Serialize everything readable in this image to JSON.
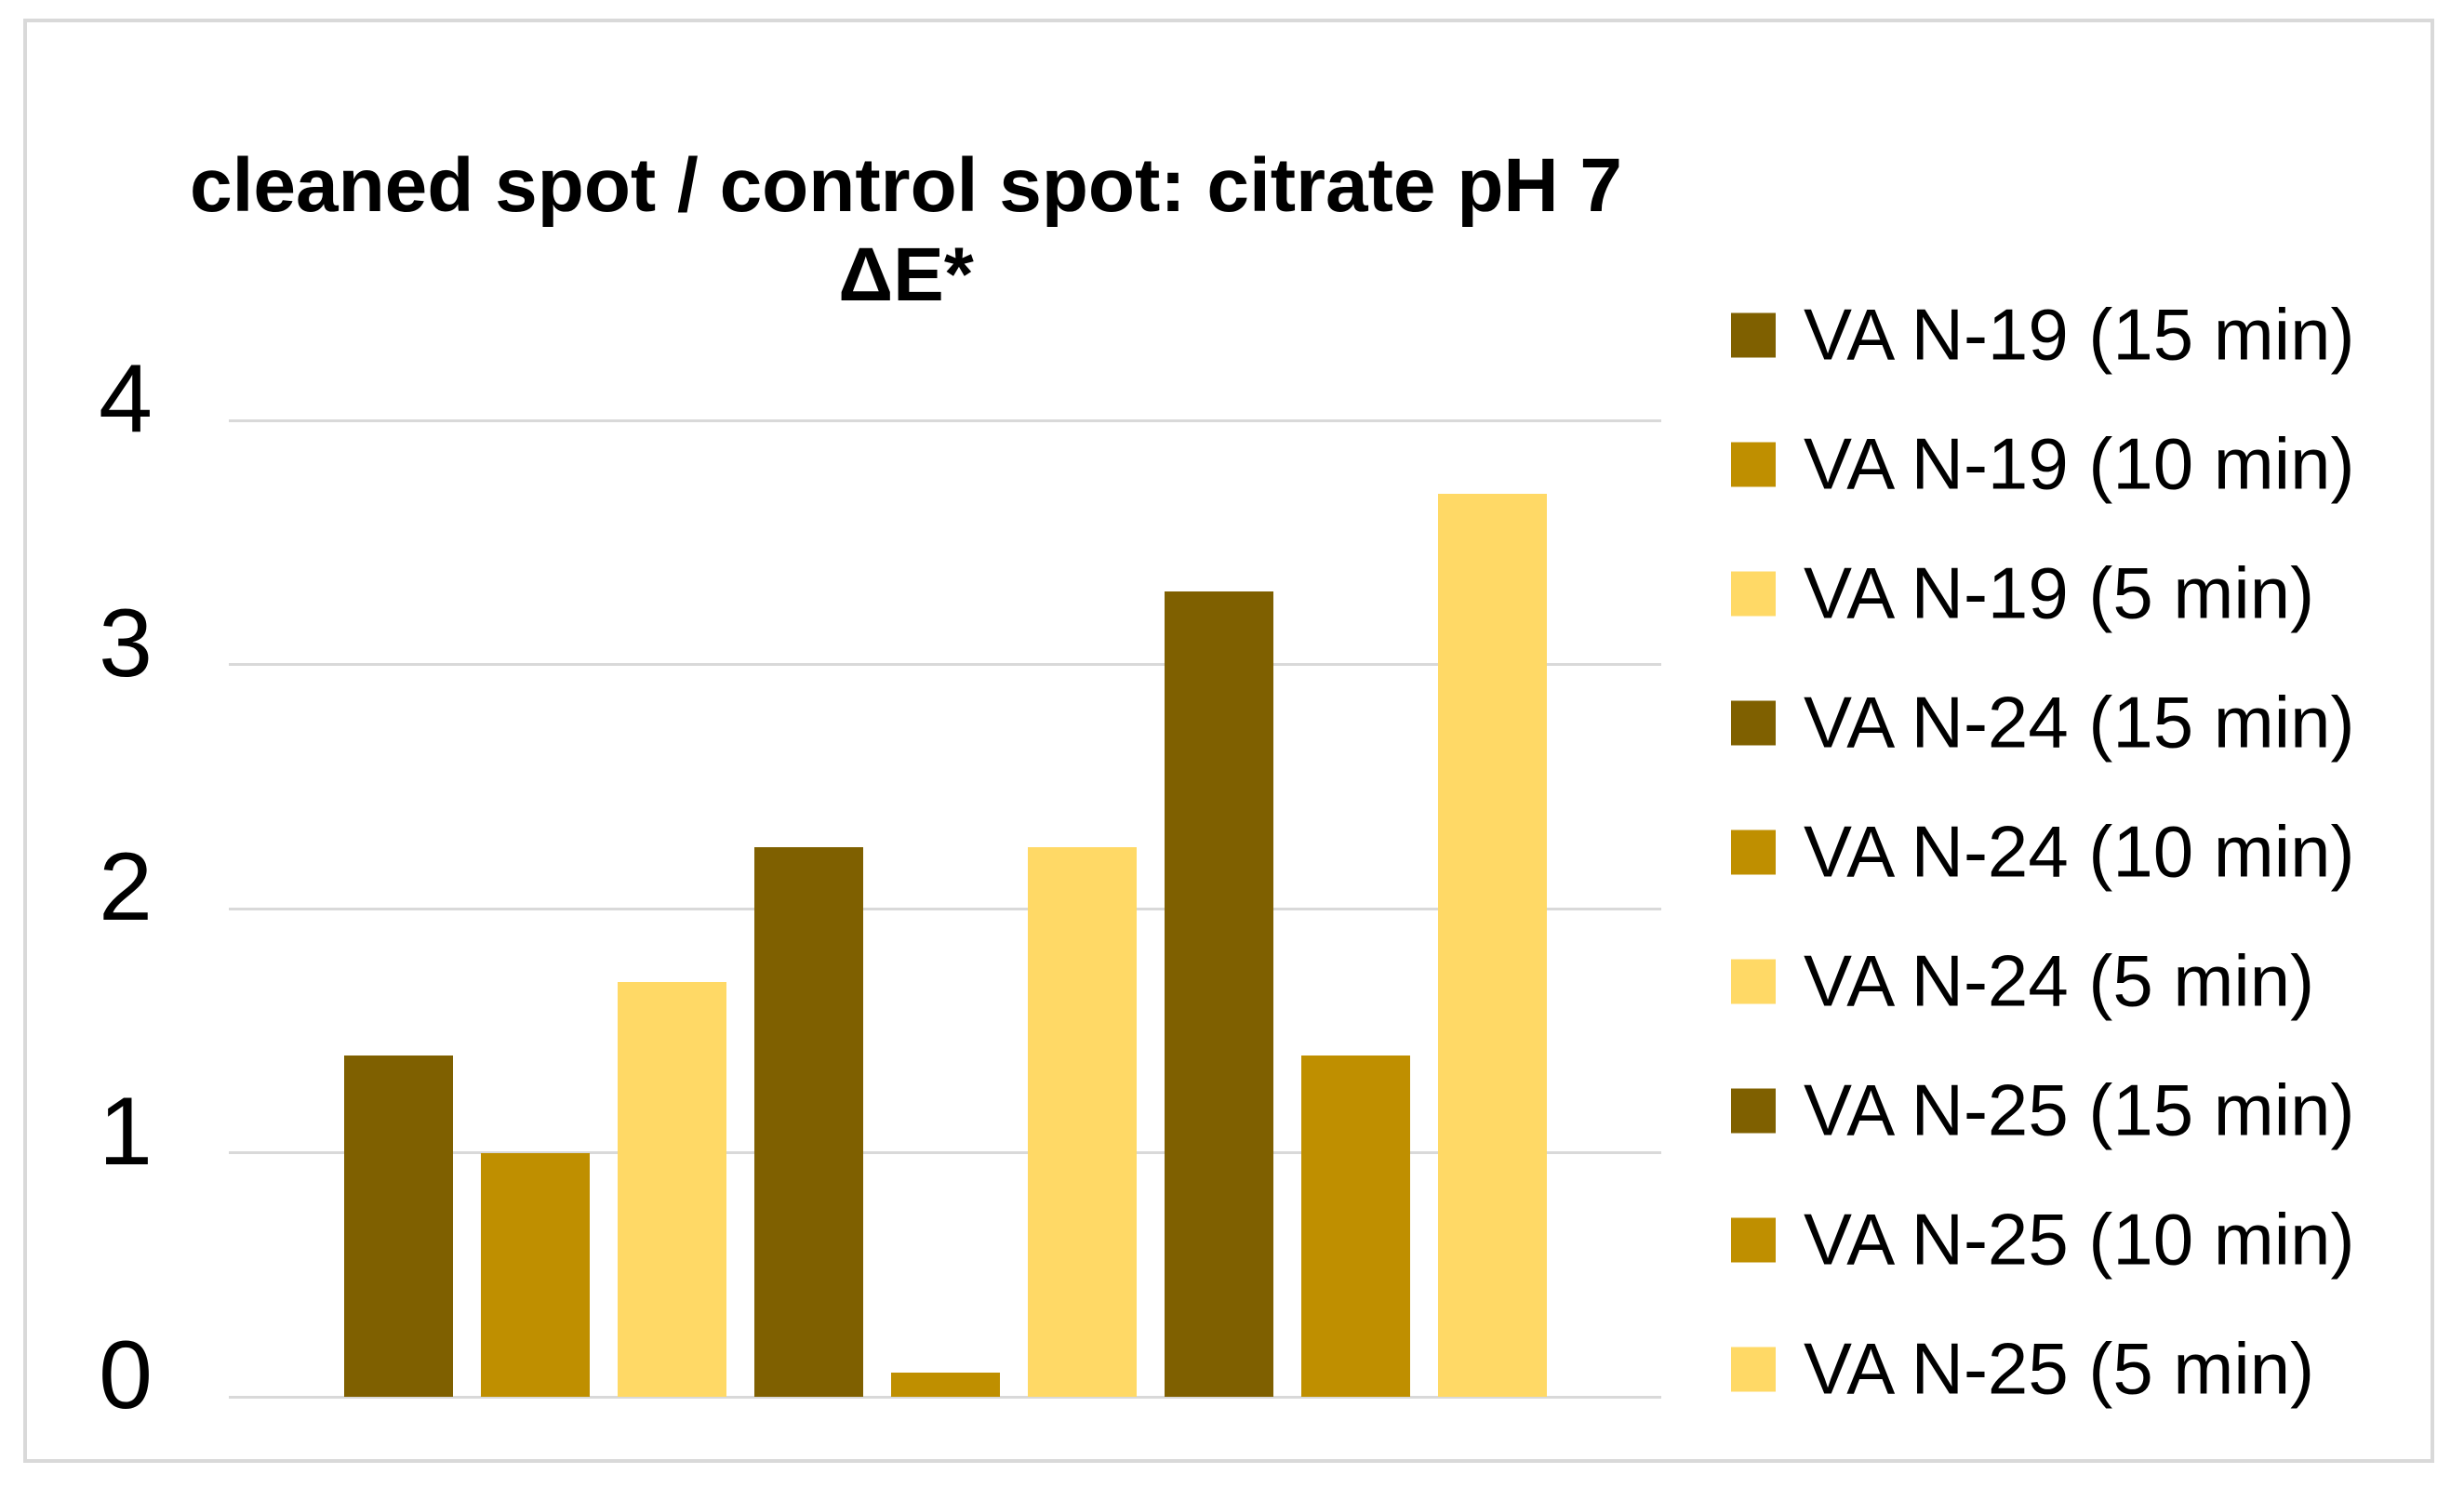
{
  "chart_data": {
    "type": "bar",
    "title": "cleaned spot / control spot: citrate pH 7",
    "subtitle": "ΔE*",
    "xlabel": "",
    "ylabel": "",
    "ylim": [
      0,
      4
    ],
    "yticks": [
      0,
      1,
      2,
      3,
      4
    ],
    "grid": true,
    "legend_position": "right",
    "categories": [
      "ΔE*"
    ],
    "series": [
      {
        "name": "VA N-19 (15 min)",
        "value": 1.4,
        "color": "#7F6000"
      },
      {
        "name": "VA N-19 (10 min)",
        "value": 1.0,
        "color": "#BF8F00"
      },
      {
        "name": "VA N-19 (5 min)",
        "value": 1.7,
        "color": "#FFD966"
      },
      {
        "name": "VA N-24 (15 min)",
        "value": 2.25,
        "color": "#7F6000"
      },
      {
        "name": "VA N-24 (10 min)",
        "value": 0.1,
        "color": "#BF8F00"
      },
      {
        "name": "VA N-24 (5 min)",
        "value": 2.25,
        "color": "#FFD966"
      },
      {
        "name": "VA N-25 (15 min)",
        "value": 3.3,
        "color": "#7F6000"
      },
      {
        "name": "VA N-25 (10 min)",
        "value": 1.4,
        "color": "#BF8F00"
      },
      {
        "name": "VA N-25 (5 min)",
        "value": 3.7,
        "color": "#FFD966"
      }
    ],
    "colors": {
      "gridline": "#D9D9D9",
      "frame_border": "#D9D9D9",
      "text": "#000000",
      "background": "#FFFFFF"
    }
  }
}
